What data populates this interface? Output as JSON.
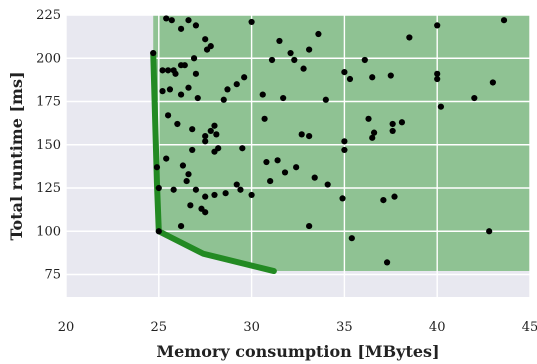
{
  "chart_data": {
    "type": "scatter",
    "title": "",
    "xlabel": "Memory consumption [MBytes]",
    "ylabel": "Total runtime [ms]",
    "xlim": [
      20,
      45
    ],
    "ylim": [
      62,
      225
    ],
    "x_ticks": [
      20,
      25,
      30,
      35,
      40,
      45
    ],
    "y_ticks": [
      75,
      100,
      125,
      150,
      175,
      200,
      225
    ],
    "grid": true,
    "background_color": "#e8e8f0",
    "region_color": "#8fc293",
    "frontier_color": "#238a23",
    "point_color": "#000000",
    "dominated_region_note": "shaded area above/right of frontier",
    "frontier": {
      "x": [
        24.7,
        24.9,
        25.0,
        27.4,
        31.2
      ],
      "y": [
        203,
        128,
        100,
        87,
        77
      ]
    },
    "points": {
      "x": [
        24.7,
        25.4,
        25.7,
        26.2,
        26.6,
        27.0,
        27.5,
        30.0,
        31.5,
        32.1,
        33.6,
        36.1,
        38.5,
        40.0,
        43.6,
        25.2,
        25.5,
        25.8,
        25.9,
        26.2,
        26.4,
        26.9,
        27.0,
        27.6,
        27.8,
        31.1,
        32.3,
        32.8,
        33.1,
        35.0,
        35.3,
        36.5,
        37.5,
        40.0,
        25.2,
        25.6,
        26.2,
        26.6,
        27.1,
        28.5,
        28.7,
        29.2,
        29.6,
        30.6,
        31.7,
        34.0,
        36.3,
        40.0,
        42.0,
        43.0,
        25.5,
        26.0,
        26.8,
        27.5,
        27.8,
        28.0,
        28.1,
        30.7,
        32.7,
        33.1,
        35.0,
        36.5,
        37.6,
        38.1,
        40.2,
        24.9,
        25.4,
        26.3,
        26.8,
        27.5,
        28.0,
        28.2,
        29.5,
        30.8,
        31.4,
        32.4,
        35.0,
        36.6,
        37.6,
        25.0,
        25.8,
        26.5,
        26.6,
        27.0,
        27.5,
        28.0,
        29.4,
        30.0,
        31.0,
        31.8,
        33.4,
        34.1,
        34.9,
        37.1,
        37.7,
        25.0,
        26.2,
        26.7,
        27.3,
        27.5,
        28.6,
        29.2,
        33.1,
        35.4,
        37.3,
        42.8
      ],
      "y": [
        203,
        223,
        222,
        217,
        222,
        219,
        211,
        221,
        210,
        203,
        214,
        199,
        212,
        219,
        222,
        193,
        193,
        193,
        191,
        196,
        196,
        200,
        191,
        205,
        207,
        199,
        199,
        194,
        205,
        192,
        188,
        189,
        190,
        191,
        181,
        182,
        179,
        183,
        177,
        176,
        182,
        185,
        189,
        179,
        177,
        176,
        165,
        188,
        177,
        186,
        167,
        162,
        159,
        155,
        158,
        161,
        156,
        165,
        156,
        155,
        152,
        154,
        158,
        163,
        172,
        137,
        142,
        138,
        147,
        152,
        146,
        148,
        148,
        140,
        141,
        137,
        147,
        157,
        162,
        125,
        124,
        129,
        133,
        124,
        120,
        121,
        124,
        121,
        129,
        134,
        131,
        127,
        119,
        118,
        120,
        100,
        103,
        115,
        113,
        111,
        122,
        127,
        103,
        96,
        82,
        100
      ]
    }
  }
}
